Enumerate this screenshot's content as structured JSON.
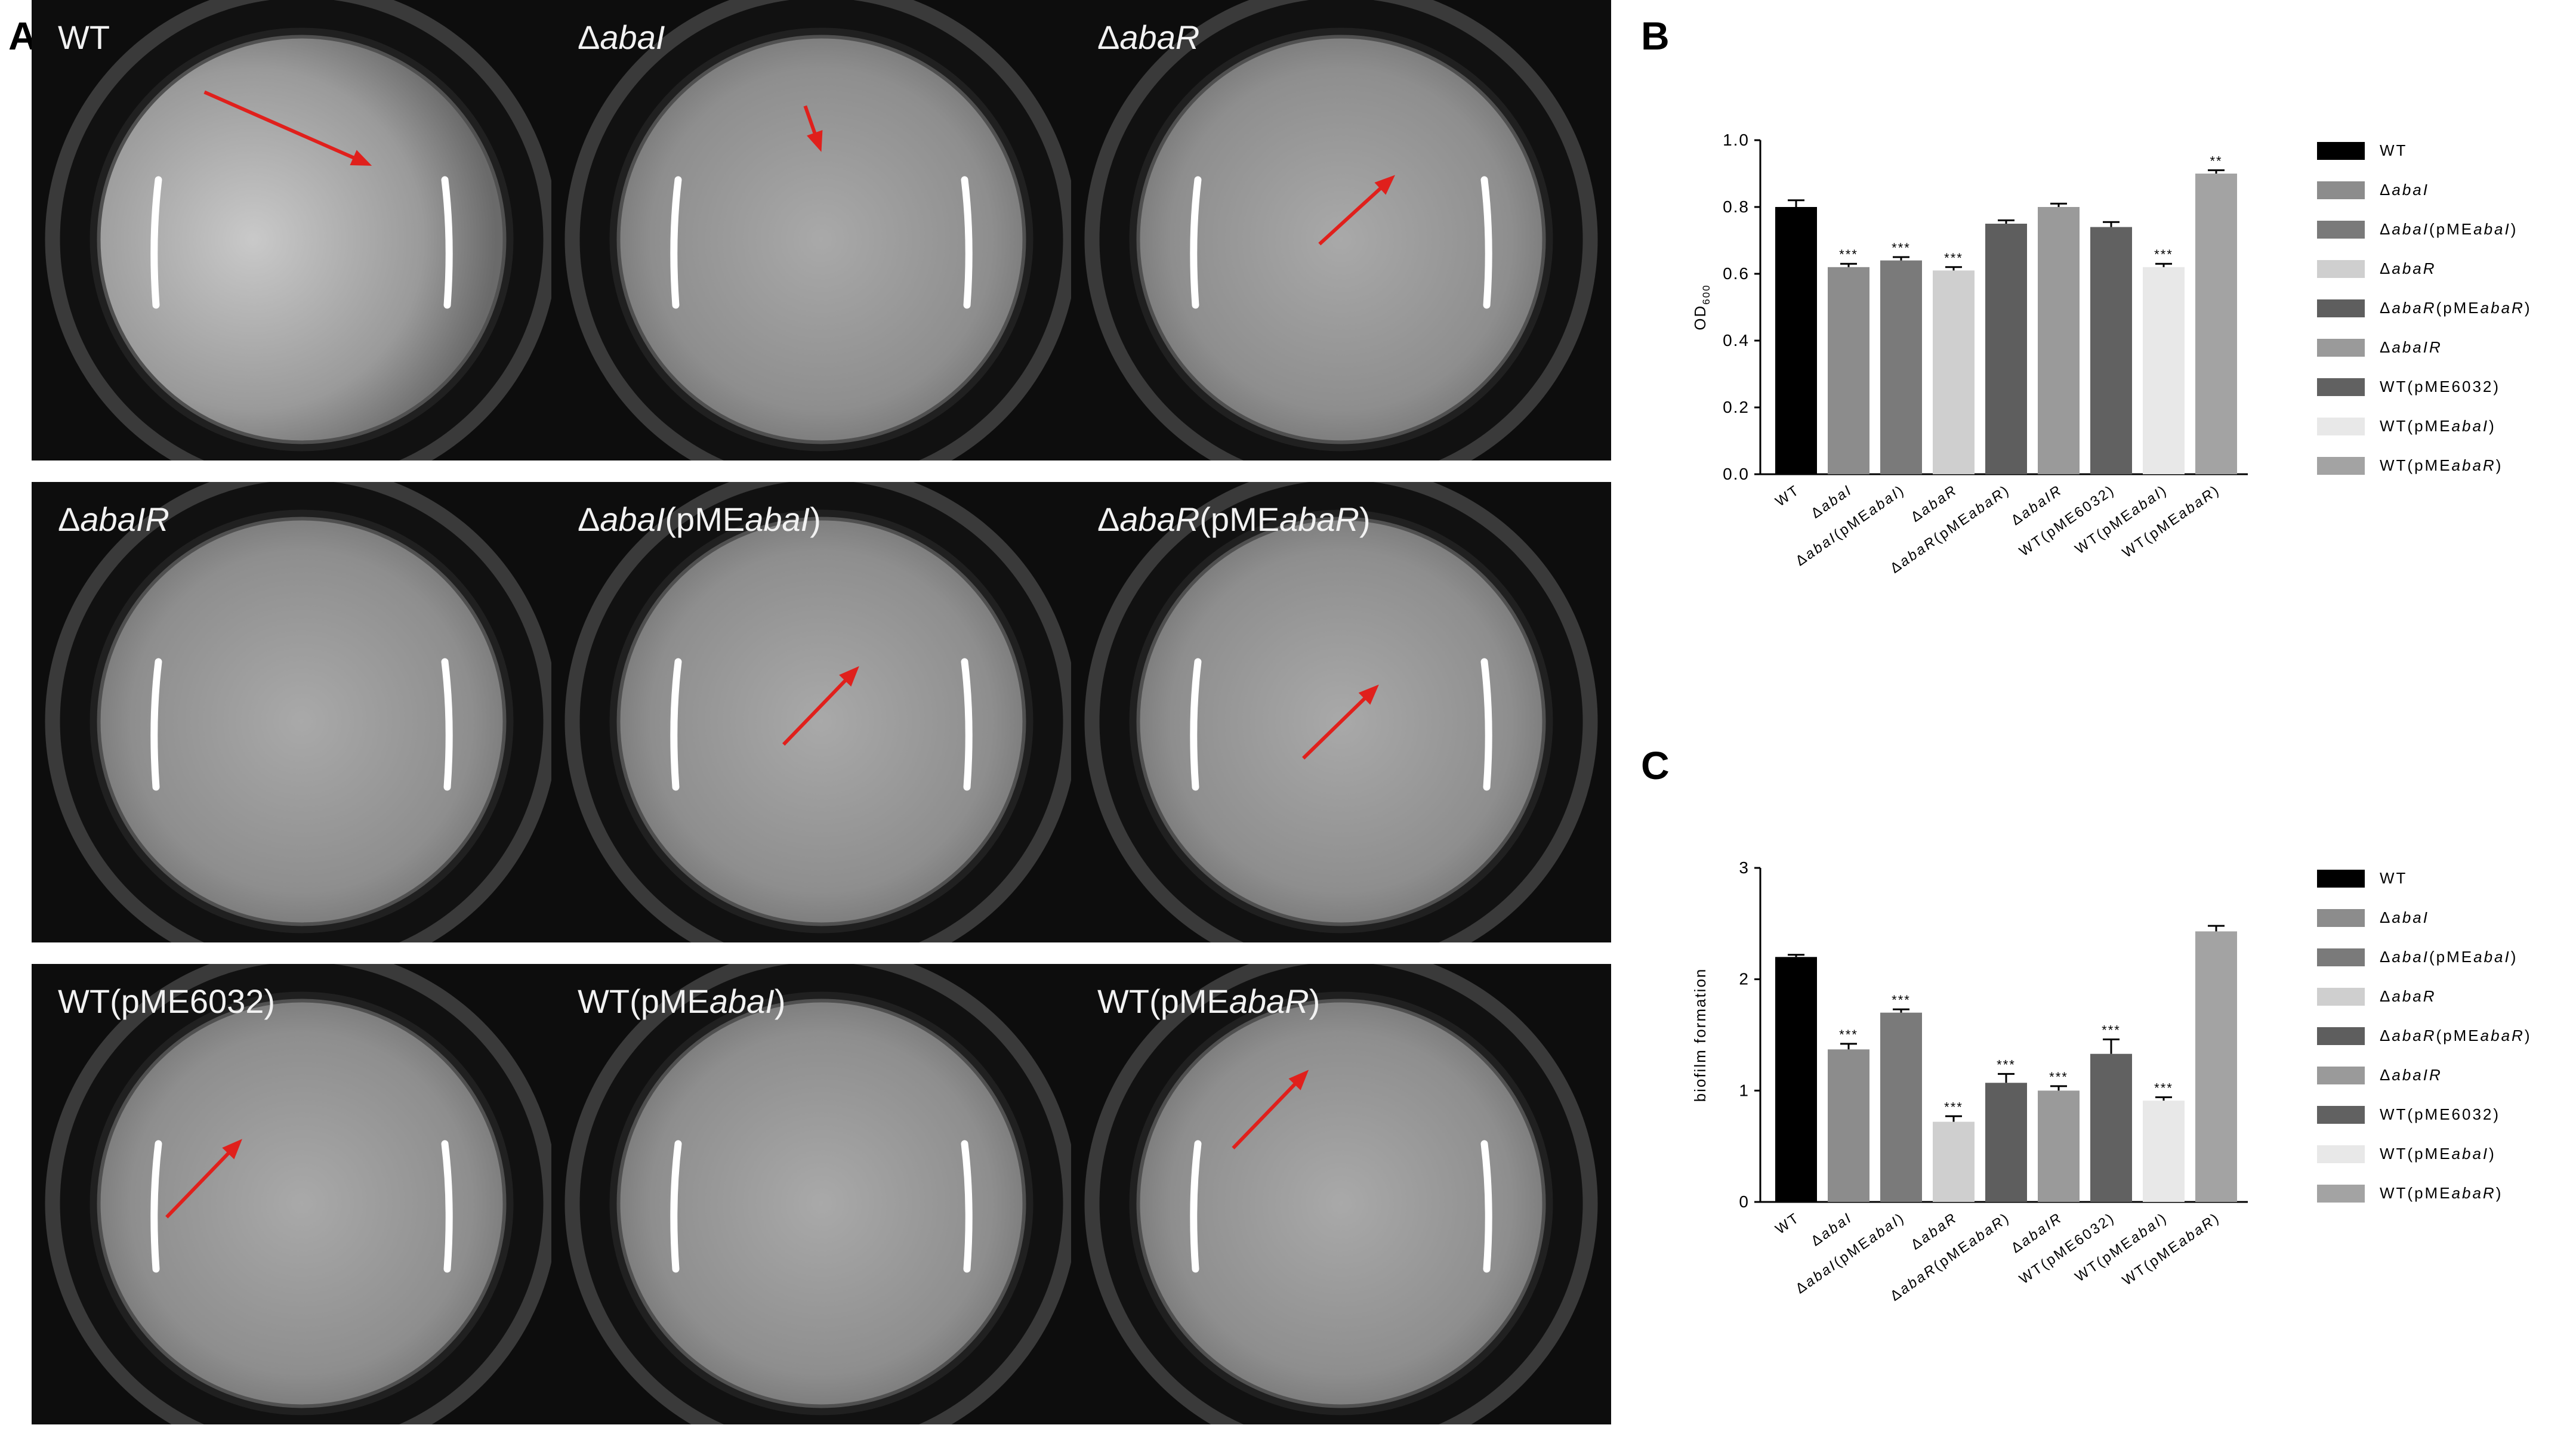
{
  "panel_labels": {
    "a": "A",
    "b": "B",
    "c": "C"
  },
  "wells": [
    {
      "label_parts": [
        {
          "t": "WT",
          "i": false
        }
      ],
      "arrow": [
        0.32,
        0.2,
        0.63,
        0.36
      ],
      "bright": true
    },
    {
      "label_parts": [
        {
          "t": "Δ",
          "i": false
        },
        {
          "t": "abaI",
          "i": true
        }
      ],
      "arrow": [
        0.47,
        0.23,
        0.5,
        0.33
      ],
      "bright": false
    },
    {
      "label_parts": [
        {
          "t": "Δ",
          "i": false
        },
        {
          "t": "abaR",
          "i": true
        }
      ],
      "arrow": [
        0.46,
        0.53,
        0.6,
        0.38
      ],
      "bright": false
    },
    {
      "label_parts": [
        {
          "t": "Δ",
          "i": false
        },
        {
          "t": "abaIR",
          "i": true
        }
      ],
      "arrow": null,
      "bright": false
    },
    {
      "label_parts": [
        {
          "t": "Δ",
          "i": false
        },
        {
          "t": "abaI",
          "i": true
        },
        {
          "t": "(pME",
          "i": false
        },
        {
          "t": "abaI",
          "i": true
        },
        {
          "t": ")",
          "i": false
        }
      ],
      "arrow": [
        0.43,
        0.57,
        0.57,
        0.4
      ],
      "bright": false
    },
    {
      "label_parts": [
        {
          "t": "Δ",
          "i": false
        },
        {
          "t": "abaR",
          "i": true
        },
        {
          "t": "(pME",
          "i": false
        },
        {
          "t": "abaR",
          "i": true
        },
        {
          "t": ")",
          "i": false
        }
      ],
      "arrow": [
        0.43,
        0.6,
        0.57,
        0.44
      ],
      "bright": false
    },
    {
      "label_parts": [
        {
          "t": "WT(pME6032)",
          "i": false
        }
      ],
      "arrow": [
        0.25,
        0.55,
        0.39,
        0.38
      ],
      "bright": false
    },
    {
      "label_parts": [
        {
          "t": "WT(pME",
          "i": false
        },
        {
          "t": "abaI",
          "i": true
        },
        {
          "t": ")",
          "i": false
        }
      ],
      "arrow": null,
      "bright": false
    },
    {
      "label_parts": [
        {
          "t": "WT(pME",
          "i": false
        },
        {
          "t": "abaR",
          "i": true
        },
        {
          "t": ")",
          "i": false
        }
      ],
      "arrow": [
        0.3,
        0.4,
        0.44,
        0.23
      ],
      "bright": false
    }
  ],
  "chart_data": [
    {
      "type": "bar",
      "panel": "B",
      "ylabel": "OD600",
      "ylabel_main": "OD",
      "ylabel_sub": "600",
      "ylim": [
        0,
        1.0
      ],
      "yticks": [
        "0.0",
        "0.2",
        "0.4",
        "0.6",
        "0.8",
        "1.0"
      ],
      "categories": [
        "WT",
        "ΔabaI",
        "ΔabaI(pMEabaI)",
        "ΔabaR",
        "ΔabaR(pMEabaR)",
        "ΔabaIR",
        "WT(pME6032)",
        "WT(pMEabaI)",
        "WT(pMEabaR)"
      ],
      "values": [
        0.8,
        0.62,
        0.64,
        0.61,
        0.75,
        0.8,
        0.74,
        0.62,
        0.9
      ],
      "errors": [
        0.02,
        0.01,
        0.01,
        0.01,
        0.01,
        0.01,
        0.015,
        0.01,
        0.01
      ],
      "significance": [
        "",
        "***",
        "***",
        "***",
        "",
        "",
        "",
        "***",
        "**"
      ],
      "colors": [
        "#000000",
        "#8c8c8c",
        "#7a7a7a",
        "#cfcfcf",
        "#5e5e5e",
        "#9a9a9a",
        "#616161",
        "#e8e8e8",
        "#a3a3a3"
      ],
      "legend_placement": "right",
      "grid": false
    },
    {
      "type": "bar",
      "panel": "C",
      "ylabel": "biofilm formation",
      "ylim": [
        0,
        3
      ],
      "yticks": [
        "0",
        "1",
        "2",
        "3"
      ],
      "categories": [
        "WT",
        "ΔabaI",
        "ΔabaI(pMEabaI)",
        "ΔabaR",
        "ΔabaR(pMEabaR)",
        "ΔabaIR",
        "WT(pME6032)",
        "WT(pMEabaI)",
        "WT(pMEabaR)"
      ],
      "values": [
        2.2,
        1.37,
        1.7,
        0.72,
        1.07,
        1.0,
        1.33,
        0.91,
        2.43
      ],
      "errors": [
        0.02,
        0.05,
        0.03,
        0.05,
        0.08,
        0.04,
        0.13,
        0.03,
        0.05
      ],
      "significance": [
        "",
        "***",
        "***",
        "***",
        "***",
        "***",
        "***",
        "***",
        ""
      ],
      "colors": [
        "#000000",
        "#8c8c8c",
        "#7a7a7a",
        "#cfcfcf",
        "#5e5e5e",
        "#9a9a9a",
        "#616161",
        "#e8e8e8",
        "#a3a3a3"
      ],
      "legend_placement": "right",
      "grid": false
    }
  ],
  "legend_labels": [
    [
      {
        "t": "WT",
        "i": false
      }
    ],
    [
      {
        "t": "Δ",
        "i": false
      },
      {
        "t": "abaI",
        "i": true
      }
    ],
    [
      {
        "t": "Δ",
        "i": false
      },
      {
        "t": "abaI",
        "i": true
      },
      {
        "t": "(pME",
        "i": false
      },
      {
        "t": "abaI",
        "i": true
      },
      {
        "t": ")",
        "i": false
      }
    ],
    [
      {
        "t": "Δ",
        "i": false
      },
      {
        "t": "abaR",
        "i": true
      }
    ],
    [
      {
        "t": "Δ",
        "i": false
      },
      {
        "t": "abaR",
        "i": true
      },
      {
        "t": "(pME",
        "i": false
      },
      {
        "t": "abaR",
        "i": true
      },
      {
        "t": ")",
        "i": false
      }
    ],
    [
      {
        "t": "Δ",
        "i": false
      },
      {
        "t": "abaIR",
        "i": true
      }
    ],
    [
      {
        "t": "WT(pME6032)",
        "i": false
      }
    ],
    [
      {
        "t": "WT(pME",
        "i": false
      },
      {
        "t": "abaI",
        "i": true
      },
      {
        "t": ")",
        "i": false
      }
    ],
    [
      {
        "t": "WT(pME",
        "i": false
      },
      {
        "t": "abaR",
        "i": true
      },
      {
        "t": ")",
        "i": false
      }
    ]
  ],
  "colors": {
    "arrow": "#e0201c",
    "well_dark": "#0c0c0c"
  }
}
